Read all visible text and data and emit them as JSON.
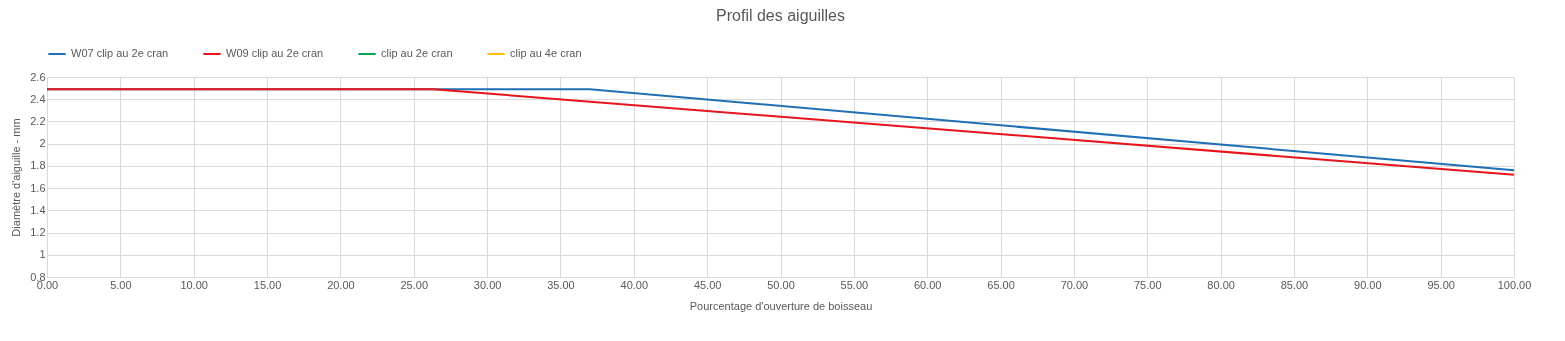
{
  "chart_data": {
    "type": "line",
    "title": "Profil des aiguilles",
    "xlabel": "Pourcentage d'ouverture de boisseau",
    "ylabel": "Diamètre d'aiguille - mm",
    "xlim": [
      0,
      100
    ],
    "ylim": [
      0.8,
      2.6
    ],
    "xticks": [
      {
        "value": 0,
        "label": "0.00"
      },
      {
        "value": 5,
        "label": "5.00"
      },
      {
        "value": 10,
        "label": "10.00"
      },
      {
        "value": 15,
        "label": "15.00"
      },
      {
        "value": 20,
        "label": "20.00"
      },
      {
        "value": 25,
        "label": "25.00"
      },
      {
        "value": 30,
        "label": "30.00"
      },
      {
        "value": 35,
        "label": "35.00"
      },
      {
        "value": 40,
        "label": "40.00"
      },
      {
        "value": 45,
        "label": "45.00"
      },
      {
        "value": 50,
        "label": "50.00"
      },
      {
        "value": 55,
        "label": "55.00"
      },
      {
        "value": 60,
        "label": "60.00"
      },
      {
        "value": 65,
        "label": "65.00"
      },
      {
        "value": 70,
        "label": "70.00"
      },
      {
        "value": 75,
        "label": "75.00"
      },
      {
        "value": 80,
        "label": "80.00"
      },
      {
        "value": 85,
        "label": "85.00"
      },
      {
        "value": 90,
        "label": "90.00"
      },
      {
        "value": 95,
        "label": "95.00"
      },
      {
        "value": 100,
        "label": "100.00"
      }
    ],
    "yticks": [
      0.8,
      1,
      1.2,
      1.4,
      1.6,
      1.8,
      2,
      2.2,
      2.4,
      2.6
    ],
    "grid": true,
    "legend": "top",
    "marker": "none",
    "line_style": "solid",
    "series": [
      {
        "name": "W07 clip au 2e cran",
        "color": "#1f6fb4",
        "x": [
          0,
          37,
          100
        ],
        "values": [
          2.49,
          2.49,
          1.76
        ]
      },
      {
        "name": "W09 clip au 2e cran",
        "color": "#e8141b",
        "x": [
          0,
          26.3,
          100
        ],
        "values": [
          2.49,
          2.49,
          1.72
        ]
      },
      {
        "name": "clip au 2e cran",
        "color": "#00a650"
      },
      {
        "name": "clip au 4e cran",
        "color": "#ffc000"
      }
    ]
  }
}
